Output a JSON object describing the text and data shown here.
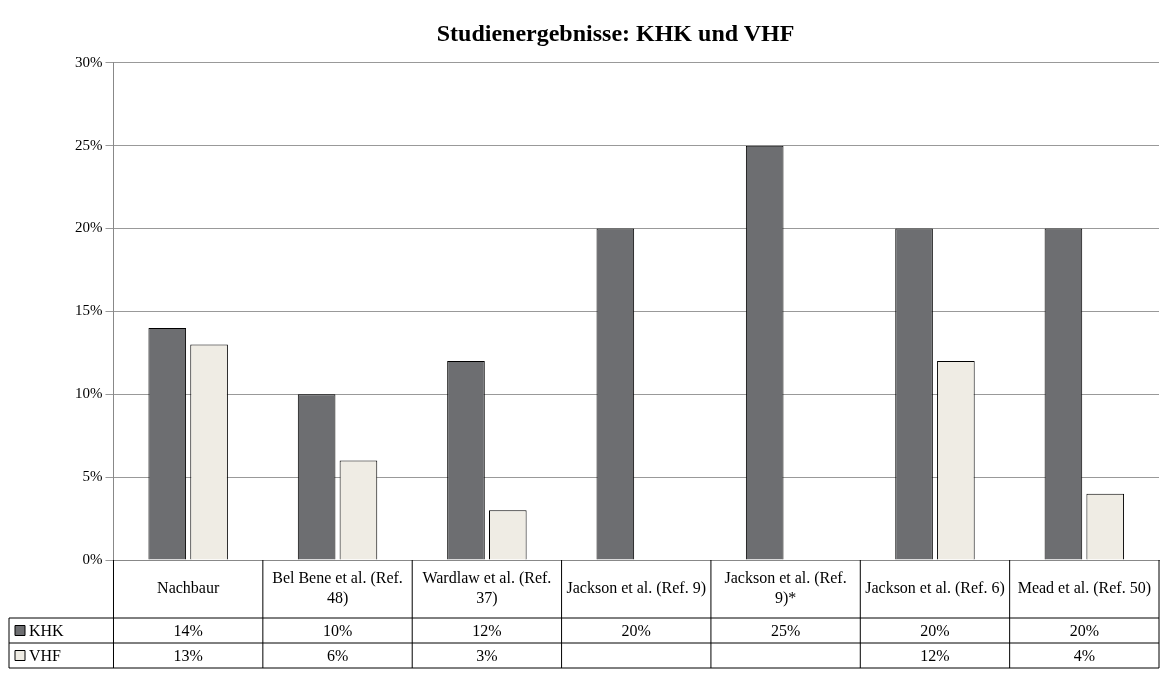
{
  "chart_data": {
    "type": "bar",
    "title": "Studienergebnisse: KHK und VHF",
    "categories": [
      "Nachbaur",
      "Bel Bene et al. (Ref. 48)",
      "Wardlaw et al. (Ref. 37)",
      "Jackson et al. (Ref. 9)",
      "Jackson et al. (Ref. 9)*",
      "Jackson et al. (Ref. 6)",
      "Mead et al. (Ref. 50)"
    ],
    "series": [
      {
        "name": "KHK",
        "color": "#6d6e71",
        "values": [
          14,
          10,
          12,
          20,
          25,
          20,
          20
        ],
        "value_labels": [
          "14%",
          "10%",
          "12%",
          "20%",
          "25%",
          "20%",
          "20%"
        ]
      },
      {
        "name": "VHF",
        "color": "#efece4",
        "values": [
          13,
          6,
          3,
          null,
          null,
          12,
          4
        ],
        "value_labels": [
          "13%",
          "6%",
          "3%",
          null,
          null,
          "12%",
          "4%"
        ]
      }
    ],
    "ylim": [
      0,
      30
    ],
    "yticks": [
      {
        "value": 0,
        "label": "0%"
      },
      {
        "value": 5,
        "label": "5%"
      },
      {
        "value": 10,
        "label": "10%"
      },
      {
        "value": 15,
        "label": "15%"
      },
      {
        "value": 20,
        "label": "20%"
      },
      {
        "value": 25,
        "label": "25%"
      },
      {
        "value": 30,
        "label": "30%"
      }
    ],
    "grid": "y",
    "legend": "bottom left"
  }
}
